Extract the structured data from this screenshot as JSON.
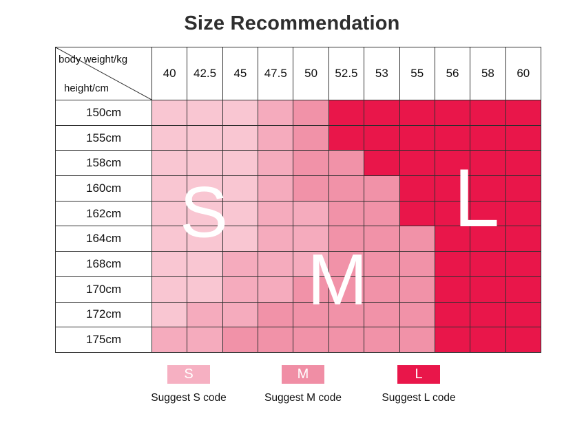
{
  "title": "Size Recommendation",
  "colors": {
    "s1": "#f9c6d2",
    "s2": "#f5abbd",
    "s3": "#f192a8",
    "s4": "#e9164a"
  },
  "table": {
    "corner": {
      "top_label": "body weight/kg",
      "bottom_label": "height/cm"
    },
    "weight_columns": [
      "40",
      "42.5",
      "45",
      "47.5",
      "50",
      "52.5",
      "53",
      "55",
      "56",
      "58",
      "60"
    ],
    "rows": [
      {
        "height": "150cm",
        "cells": [
          "s1",
          "s1",
          "s1",
          "s2",
          "s3",
          "s4",
          "s4",
          "s4",
          "s4",
          "s4",
          "s4"
        ]
      },
      {
        "height": "155cm",
        "cells": [
          "s1",
          "s1",
          "s1",
          "s2",
          "s3",
          "s4",
          "s4",
          "s4",
          "s4",
          "s4",
          "s4"
        ]
      },
      {
        "height": "158cm",
        "cells": [
          "s1",
          "s1",
          "s1",
          "s2",
          "s3",
          "s3",
          "s4",
          "s4",
          "s4",
          "s4",
          "s4"
        ]
      },
      {
        "height": "160cm",
        "cells": [
          "s1",
          "s1",
          "s1",
          "s2",
          "s3",
          "s3",
          "s3",
          "s4",
          "s4",
          "s4",
          "s4"
        ]
      },
      {
        "height": "162cm",
        "cells": [
          "s1",
          "s1",
          "s1",
          "s2",
          "s2",
          "s3",
          "s3",
          "s4",
          "s4",
          "s4",
          "s4"
        ]
      },
      {
        "height": "164cm",
        "cells": [
          "s1",
          "s1",
          "s1",
          "s2",
          "s2",
          "s3",
          "s3",
          "s3",
          "s4",
          "s4",
          "s4"
        ]
      },
      {
        "height": "168cm",
        "cells": [
          "s1",
          "s1",
          "s2",
          "s2",
          "s2",
          "s3",
          "s3",
          "s3",
          "s4",
          "s4",
          "s4"
        ]
      },
      {
        "height": "170cm",
        "cells": [
          "s1",
          "s1",
          "s2",
          "s2",
          "s3",
          "s3",
          "s3",
          "s3",
          "s4",
          "s4",
          "s4"
        ]
      },
      {
        "height": "172cm",
        "cells": [
          "s1",
          "s2",
          "s2",
          "s3",
          "s3",
          "s3",
          "s3",
          "s3",
          "s4",
          "s4",
          "s4"
        ]
      },
      {
        "height": "175cm",
        "cells": [
          "s2",
          "s2",
          "s3",
          "s3",
          "s3",
          "s3",
          "s3",
          "s3",
          "s4",
          "s4",
          "s4"
        ]
      }
    ]
  },
  "overlay": {
    "s": "S",
    "m": "M",
    "l": "L"
  },
  "legend": [
    {
      "code": "S",
      "label": "Suggest S code",
      "color": "#f6b0c2"
    },
    {
      "code": "M",
      "label": "Suggest M code",
      "color": "#f08ea5"
    },
    {
      "code": "L",
      "label": "Suggest L code",
      "color": "#e9164a"
    }
  ],
  "chart_data": {
    "type": "heatmap",
    "title": "Size Recommendation",
    "xlabel": "body weight/kg",
    "ylabel": "height/cm",
    "x_categories": [
      "40",
      "42.5",
      "45",
      "47.5",
      "50",
      "52.5",
      "53",
      "55",
      "56",
      "58",
      "60"
    ],
    "y_categories": [
      "150cm",
      "155cm",
      "158cm",
      "160cm",
      "162cm",
      "164cm",
      "168cm",
      "170cm",
      "172cm",
      "175cm"
    ],
    "values": [
      [
        "S",
        "S",
        "S",
        "S",
        "M",
        "L",
        "L",
        "L",
        "L",
        "L",
        "L"
      ],
      [
        "S",
        "S",
        "S",
        "S",
        "M",
        "L",
        "L",
        "L",
        "L",
        "L",
        "L"
      ],
      [
        "S",
        "S",
        "S",
        "S",
        "M",
        "M",
        "L",
        "L",
        "L",
        "L",
        "L"
      ],
      [
        "S",
        "S",
        "S",
        "S",
        "M",
        "M",
        "M",
        "L",
        "L",
        "L",
        "L"
      ],
      [
        "S",
        "S",
        "S",
        "S",
        "S",
        "M",
        "M",
        "L",
        "L",
        "L",
        "L"
      ],
      [
        "S",
        "S",
        "S",
        "S",
        "S",
        "M",
        "M",
        "M",
        "L",
        "L",
        "L"
      ],
      [
        "S",
        "S",
        "S",
        "S",
        "S",
        "M",
        "M",
        "M",
        "L",
        "L",
        "L"
      ],
      [
        "S",
        "S",
        "S",
        "S",
        "M",
        "M",
        "M",
        "M",
        "L",
        "L",
        "L"
      ],
      [
        "S",
        "S",
        "S",
        "M",
        "M",
        "M",
        "M",
        "M",
        "L",
        "L",
        "L"
      ],
      [
        "S",
        "S",
        "M",
        "M",
        "M",
        "M",
        "M",
        "M",
        "L",
        "L",
        "L"
      ]
    ],
    "legend": [
      "Suggest S code",
      "Suggest M code",
      "Suggest L code"
    ],
    "legend_position": "bottom",
    "grid": true
  }
}
